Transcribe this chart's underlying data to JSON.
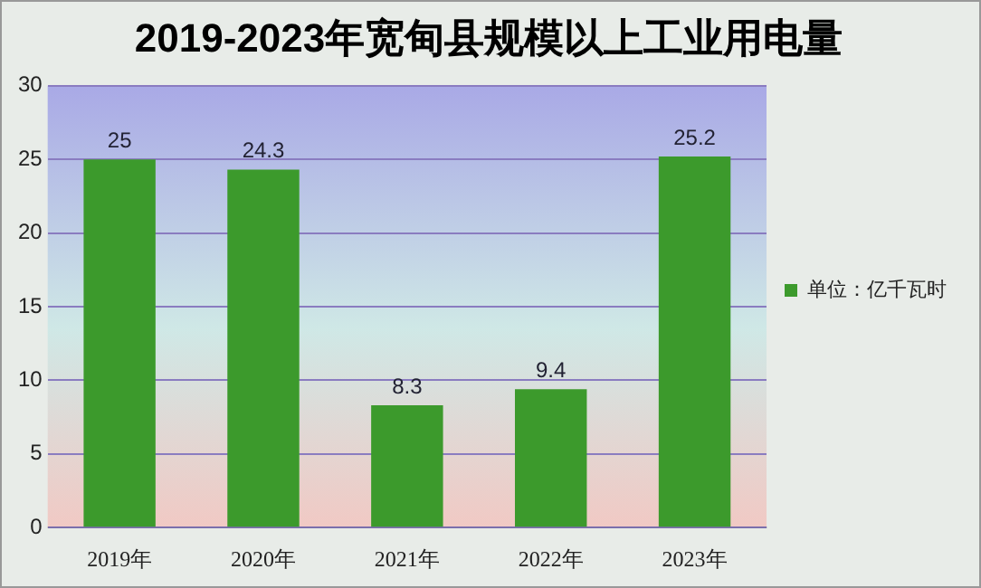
{
  "chart_data": {
    "type": "bar",
    "title": "2019-2023年宽甸县规模以上工业用电量",
    "categories": [
      "2019年",
      "2020年",
      "2021年",
      "2022年",
      "2023年"
    ],
    "series": [
      {
        "name": "单位：亿千瓦时",
        "color": "#3c9a2c",
        "values": [
          25,
          24.3,
          8.3,
          9.4,
          25.2
        ]
      }
    ],
    "ylim": [
      0,
      30
    ],
    "yticks": [
      0,
      5,
      10,
      15,
      20,
      25,
      30
    ],
    "grid": "y",
    "legend": "right",
    "data_labels": true
  }
}
